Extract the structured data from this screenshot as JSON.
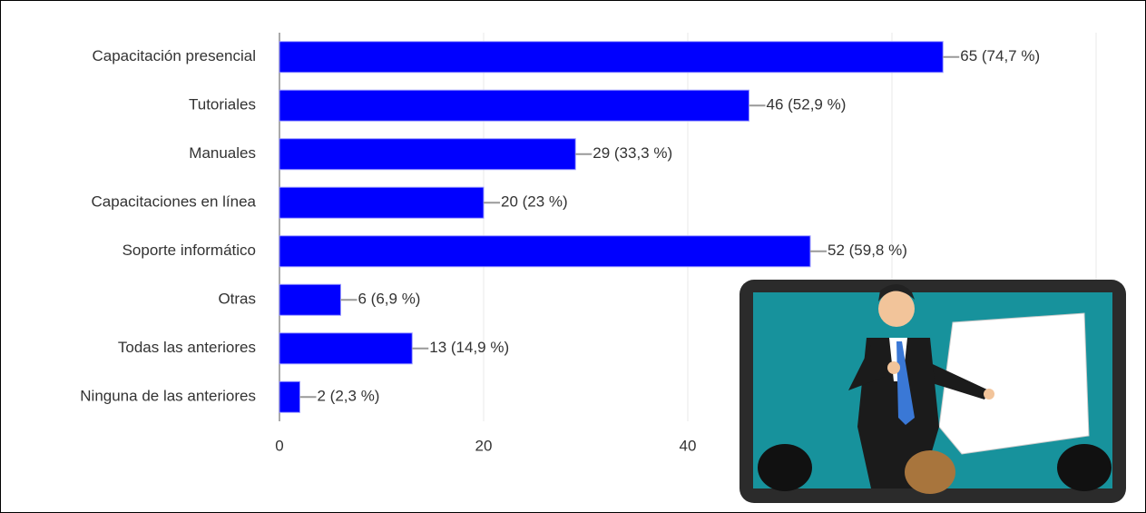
{
  "chart_data": {
    "type": "bar",
    "orientation": "horizontal",
    "categories": [
      "Capacitación presencial",
      "Tutoriales",
      "Manuales",
      "Capacitaciones en línea",
      "Soporte informático",
      "Otras",
      "Todas las anteriores",
      "Ninguna de las anteriores"
    ],
    "values": [
      65,
      46,
      29,
      20,
      52,
      6,
      13,
      2
    ],
    "value_labels": [
      "65 (74,7 %)",
      "46 (52,9 %)",
      "29 (33,3 %)",
      "20 (23 %)",
      "52 (59,8 %)",
      "6 (6,9 %)",
      "13 (14,9 %)",
      "2 (2,3 %)"
    ],
    "color": "#0000ff",
    "xlim": [
      0,
      80
    ],
    "xticks": [
      0,
      20,
      40,
      60,
      80
    ],
    "grid": true
  }
}
